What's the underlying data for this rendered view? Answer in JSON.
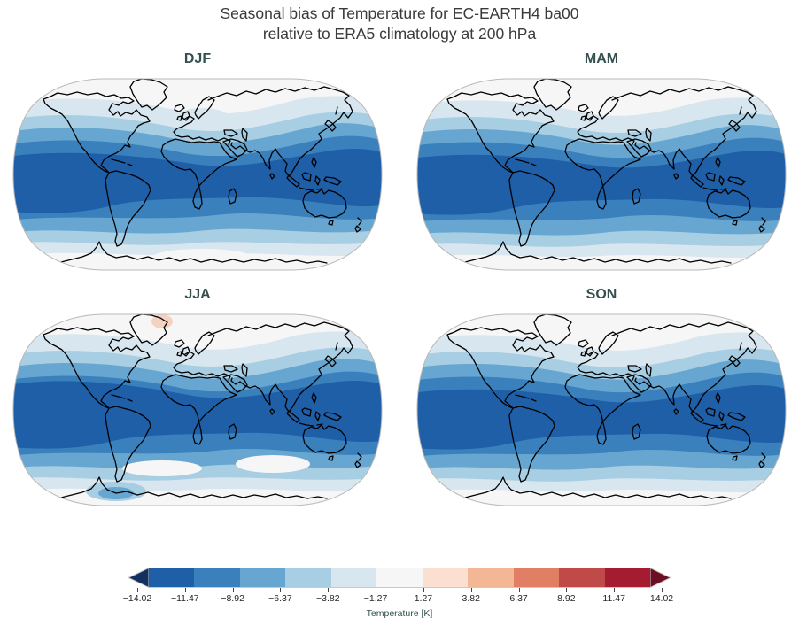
{
  "figure": {
    "title_line1": "Seasonal bias of Temperature for EC-EARTH4 ba00",
    "title_line2": "relative to ERA5 climatology at 200 hPa"
  },
  "colors": {
    "title_color": "#3a3a3a",
    "season_label_color": "#33504e",
    "map_edge_color": "#b9b9b9",
    "coastline_color": "#000000"
  },
  "panels": [
    {
      "label": "DJF"
    },
    {
      "label": "MAM"
    },
    {
      "label": "JJA"
    },
    {
      "label": "SON"
    }
  ],
  "colorbar": {
    "label": "Temperature [K]",
    "tick_labels": [
      "−14.02",
      "−11.47",
      "−8.92",
      "−6.37",
      "−3.82",
      "−1.27",
      "1.27",
      "3.82",
      "6.37",
      "8.92",
      "11.47",
      "14.02"
    ],
    "segment_colors": [
      "#1f5fa8",
      "#3a80bc",
      "#67a6d0",
      "#a7cee3",
      "#d8e6ef",
      "#f5f6f5",
      "#fbdfd0",
      "#f4b795",
      "#e07f63",
      "#c04a48",
      "#a51c30"
    ],
    "under_color": "#12315e",
    "over_color": "#6d0f22"
  },
  "chart_data": {
    "type": "heatmap",
    "subtype": "filled_contour_world_maps",
    "projection": "Robinson",
    "title": "Seasonal bias of Temperature for EC-EARTH4 ba00 relative to ERA5 climatology at 200 hPa",
    "variable": "Temperature bias",
    "units": "K",
    "pressure_level_hPa": 200,
    "model": "EC-EARTH4 ba00",
    "reference": "ERA5 climatology",
    "panels": [
      "DJF",
      "MAM",
      "JJA",
      "SON"
    ],
    "colorbar_label": "Temperature [K]",
    "contour_levels": [
      -14.02,
      -11.47,
      -8.92,
      -6.37,
      -3.82,
      -1.27,
      1.27,
      3.82,
      6.37,
      8.92,
      11.47,
      14.02
    ],
    "colormap": "diverging blue-white-red (RdBu), blue = cold bias, with triangular under/over extensions",
    "legend_position": "bottom horizontal colorbar",
    "estimated_from_colors": true,
    "zonal_mean_bias_K": {
      "DJF": {
        "90N": -0.5,
        "70N": -2.5,
        "55N": -5,
        "45N": -7.5,
        "30N": -10,
        "15N": -13,
        "0": -13,
        "15S": -13,
        "30S": -10,
        "45S": -7.5,
        "60S": -3,
        "75S": -2.5,
        "90S": -0.5
      },
      "MAM": {
        "90N": -0.5,
        "70N": -2.5,
        "55N": -5,
        "45N": -7.5,
        "30N": -10,
        "15N": -13,
        "0": -13,
        "15S": -13,
        "30S": -10,
        "45S": -5,
        "60S": -3,
        "75S": -2.5,
        "90S": -0.5
      },
      "JJA": {
        "90N": -0.5,
        "70N": -2.5,
        "55N": -7.5,
        "45N": -10,
        "30N": -13,
        "15N": -13,
        "0": -13,
        "15S": -10,
        "30S": -7.5,
        "45S": -5,
        "60S": -2.5,
        "75S": -3,
        "90S": -2.5
      },
      "SON": {
        "90N": -0.5,
        "70N": -2.5,
        "55N": -5,
        "45N": -7.5,
        "30N": -10,
        "15N": -13,
        "0": -13,
        "15S": -13,
        "30S": -10,
        "45S": -5,
        "60S": -2.5,
        "75S": -2.5,
        "90S": -0.5
      }
    },
    "notable_features": [
      "Widespread cold bias of −6 to −14 K across the tropics and mid-latitudes in all seasons",
      "Bias weakens toward both poles (−1 to +1 K near-white regions)",
      "Small warm bias of about +1 to +3 K over Greenland in JJA (pale pink patch)",
      "Dark-blue cold-bias core spans roughly 30N–30S, widest over the Indo-Pacific"
    ]
  }
}
